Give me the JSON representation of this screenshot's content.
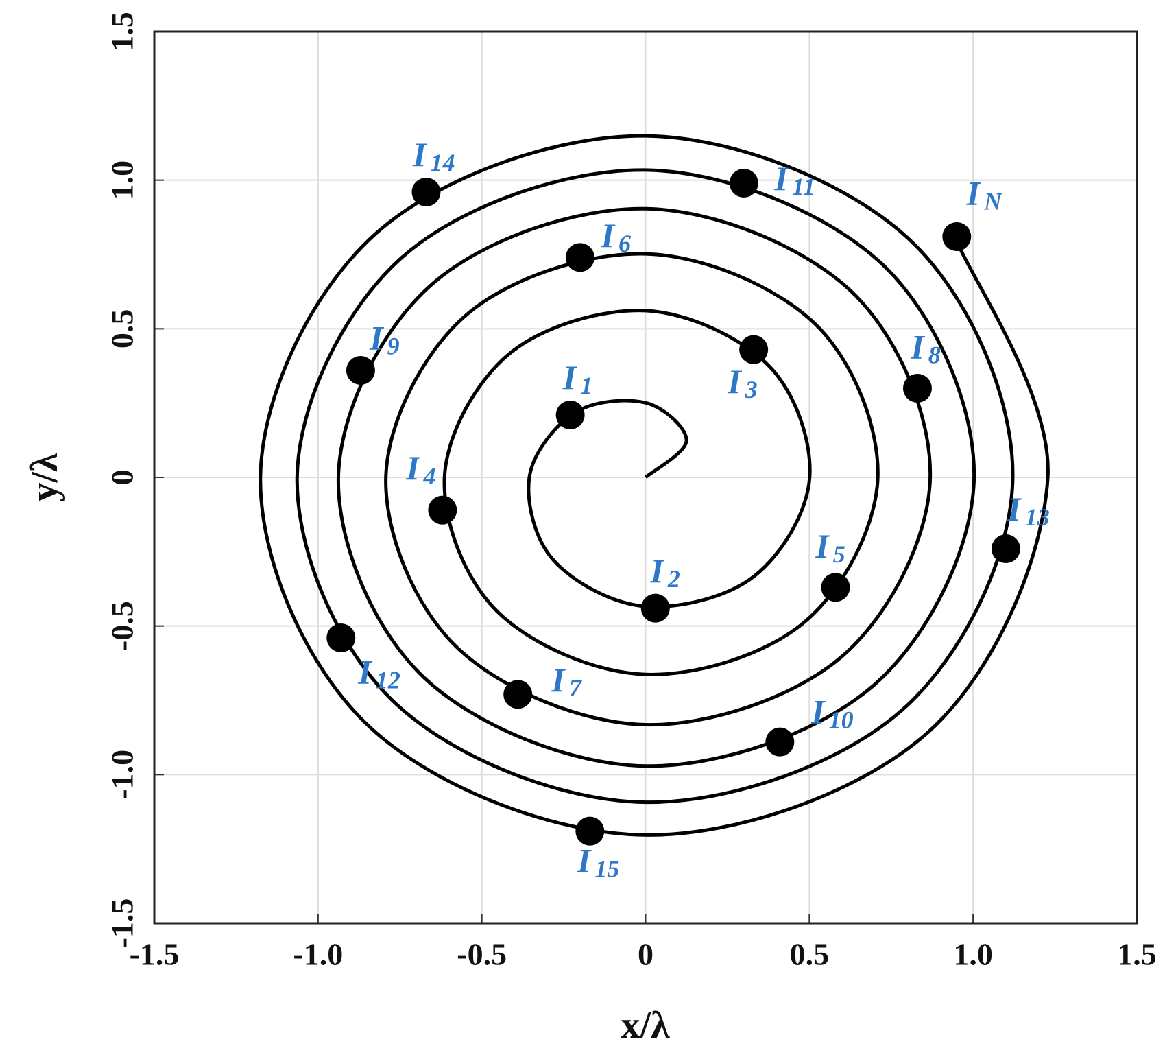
{
  "chart_data": {
    "type": "line",
    "xlabel": "x/λ",
    "ylabel": "y/λ",
    "xlim": [
      -1.5,
      1.5
    ],
    "ylim": [
      -1.5,
      1.5
    ],
    "xticks": [
      -1.5,
      {
        "value": -1,
        "label": "-1.0"
      },
      -0.5,
      0,
      0.5,
      {
        "value": 1,
        "label": "1.0"
      },
      1.5
    ],
    "yticks": [
      -1.5,
      {
        "value": -1,
        "label": "-1.0"
      },
      -0.5,
      0,
      0.5,
      {
        "value": 1,
        "label": "1.0"
      },
      1.5
    ],
    "grid": true,
    "curve": {
      "color": "#000000",
      "x": [
        0,
        0.125,
        0,
        -0.217,
        -0.355,
        -0.28,
        0,
        0.332,
        0.501,
        0.376,
        0,
        -0.416,
        -0.614,
        -0.452,
        0,
        0.486,
        0.709,
        0.517,
        0,
        -0.547,
        -0.793,
        -0.574,
        0,
        0.601,
        0.869,
        0.627,
        0,
        -0.651,
        -0.938,
        -0.675,
        0,
        0.698,
        1.003,
        0.72,
        0,
        -0.742,
        -1.064,
        -0.762,
        0,
        0.783,
        1.121,
        0.803,
        0,
        -0.822,
        -1.176,
        -0.841,
        0,
        0.86,
        1.228,
        0.949
      ],
      "y": [
        0,
        0.125,
        0.251,
        0.217,
        0,
        -0.28,
        -0.434,
        -0.332,
        0,
        0.376,
        0.561,
        0.416,
        0,
        -0.452,
        -0.663,
        -0.486,
        0,
        0.517,
        0.752,
        0.547,
        0,
        -0.574,
        -0.832,
        -0.601,
        0,
        0.627,
        0.904,
        0.651,
        0,
        -0.675,
        -0.971,
        -0.698,
        0,
        0.72,
        1.034,
        0.742,
        0,
        -0.762,
        -1.093,
        -0.783,
        0,
        0.803,
        1.149,
        0.822,
        0,
        -0.841,
        -1.203,
        -0.86,
        0,
        0.799
      ]
    },
    "points": {
      "color": "#000000",
      "label_color": "#2f78c8",
      "x": [
        -0.23,
        0.03,
        0.33,
        -0.62,
        0.58,
        -0.2,
        -0.39,
        0.83,
        -0.87,
        0.41,
        0.3,
        -0.93,
        1.1,
        -0.67,
        -0.17,
        0.95
      ],
      "y": [
        0.21,
        -0.44,
        0.43,
        -0.11,
        -0.37,
        0.74,
        -0.73,
        0.3,
        0.36,
        -0.89,
        0.99,
        -0.54,
        -0.24,
        0.96,
        -1.19,
        0.81
      ],
      "labels": [
        {
          "main": "I",
          "sub": "1"
        },
        {
          "main": "I",
          "sub": "2"
        },
        {
          "main": "I",
          "sub": "3"
        },
        {
          "main": "I",
          "sub": "4"
        },
        {
          "main": "I",
          "sub": "5"
        },
        {
          "main": "I",
          "sub": "6"
        },
        {
          "main": "I",
          "sub": "7"
        },
        {
          "main": "I",
          "sub": "8"
        },
        {
          "main": "I",
          "sub": "9"
        },
        {
          "main": "I",
          "sub": "10"
        },
        {
          "main": "I",
          "sub": "11"
        },
        {
          "main": "I",
          "sub": "12"
        },
        {
          "main": "I",
          "sub": "13"
        },
        {
          "main": "I",
          "sub": "14"
        },
        {
          "main": "I",
          "sub": "15"
        },
        {
          "main": "I",
          "sub": "N"
        }
      ]
    }
  }
}
